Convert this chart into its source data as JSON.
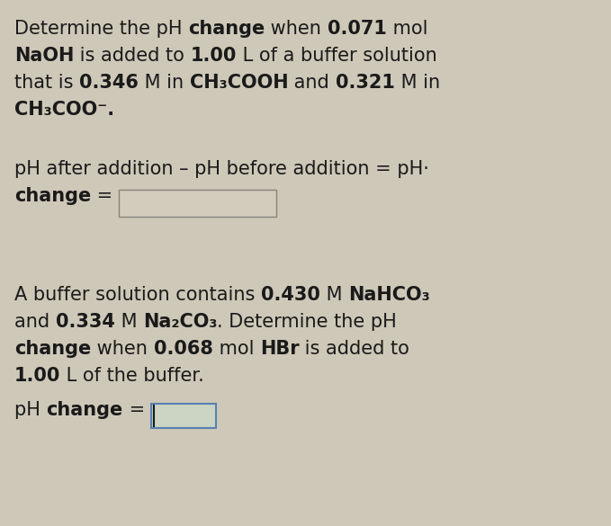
{
  "bg_top": "#cec8b8",
  "bg_bottom": "#ccd8c8",
  "divider_color": "#ffffff",
  "orange_bar_color": "#e07820",
  "blue_bar_color": "#4a7ab5",
  "text_color": "#1a1a1a",
  "figsize": [
    6.79,
    5.85
  ],
  "dpi": 100,
  "panel1_lines": [
    [
      [
        "Determine the pH ",
        false
      ],
      [
        "change",
        true
      ],
      [
        " when ",
        false
      ],
      [
        "0.071",
        true
      ],
      [
        " mol",
        false
      ]
    ],
    [
      [
        "NaOH",
        true
      ],
      [
        " is added to ",
        false
      ],
      [
        "1.00",
        true
      ],
      [
        " L of a buffer solution",
        false
      ]
    ],
    [
      [
        "that is ",
        false
      ],
      [
        "0.346",
        true
      ],
      [
        " M in ",
        false
      ],
      [
        "CH₃COOH",
        true
      ],
      [
        " and ",
        false
      ],
      [
        "0.321",
        true
      ],
      [
        " M in",
        false
      ]
    ],
    [
      [
        "CH₃COO⁻.",
        true
      ]
    ]
  ],
  "panel1_formula": [
    [
      "pH after addition – pH before addition = pH·",
      false
    ]
  ],
  "panel1_change": [
    [
      "change",
      true
    ],
    [
      " = ",
      false
    ]
  ],
  "panel2_lines": [
    [
      [
        "A buffer solution contains ",
        false
      ],
      [
        "0.430",
        true
      ],
      [
        " M ",
        false
      ],
      [
        "NaHCO₃",
        true
      ]
    ],
    [
      [
        "and ",
        false
      ],
      [
        "0.334",
        true
      ],
      [
        " M ",
        false
      ],
      [
        "Na₂CO₃",
        true
      ],
      [
        ". Determine the pH",
        false
      ]
    ],
    [
      [
        "change",
        true
      ],
      [
        " when ",
        false
      ],
      [
        "0.068",
        true
      ],
      [
        " mol ",
        false
      ],
      [
        "HBr",
        true
      ],
      [
        " is added to",
        false
      ]
    ],
    [
      [
        "1.00",
        true
      ],
      [
        " L of the buffer.",
        false
      ]
    ]
  ],
  "panel2_formula": [
    [
      "pH ",
      false
    ],
    [
      "change",
      true
    ],
    [
      " = ",
      false
    ]
  ]
}
